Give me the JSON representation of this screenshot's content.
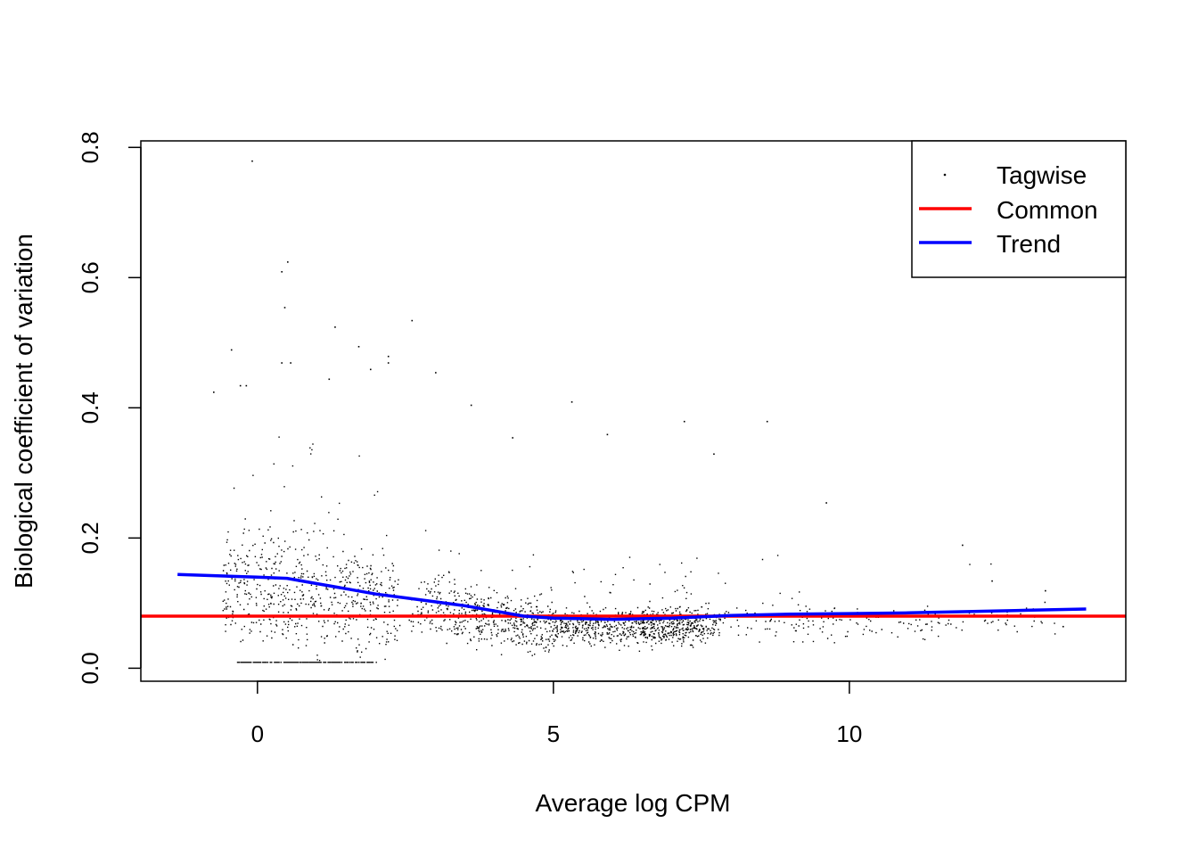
{
  "chart_data": {
    "type": "scatter",
    "title": "",
    "xlabel": "Average log CPM",
    "ylabel": "Biological coefficient of variation",
    "xlim": [
      -1.97,
      14.67
    ],
    "ylim": [
      -0.02,
      0.81
    ],
    "x_ticks": [
      0,
      5,
      10
    ],
    "x_tick_labels": [
      "0",
      "5",
      "10"
    ],
    "y_ticks": [
      0.0,
      0.2,
      0.4,
      0.6,
      0.8
    ],
    "y_tick_labels": [
      "0.0",
      "0.2",
      "0.4",
      "0.6",
      "0.8"
    ],
    "grid": false,
    "legend_position": "top-right",
    "legend": [
      {
        "label": "Tagwise",
        "kind": "point",
        "color": "#000000"
      },
      {
        "label": "Common",
        "kind": "line",
        "color": "#ff0000"
      },
      {
        "label": "Trend",
        "kind": "line",
        "color": "#0000ff"
      }
    ],
    "common": {
      "name": "Common",
      "color": "#ff0000",
      "value": 0.08
    },
    "trend": {
      "name": "Trend",
      "color": "#0000ff",
      "x": [
        -1.35,
        0.0,
        0.5,
        1.0,
        1.5,
        2.0,
        2.5,
        3.0,
        3.5,
        4.0,
        4.5,
        5.0,
        5.5,
        6.0,
        6.5,
        7.0,
        7.5,
        8.0,
        8.5,
        9.0,
        10.0,
        11.0,
        12.0,
        13.0,
        14.0
      ],
      "y": [
        0.144,
        0.14,
        0.138,
        0.13,
        0.122,
        0.114,
        0.108,
        0.102,
        0.096,
        0.088,
        0.08,
        0.077,
        0.076,
        0.075,
        0.076,
        0.077,
        0.079,
        0.081,
        0.082,
        0.083,
        0.084,
        0.085,
        0.087,
        0.089,
        0.091
      ]
    },
    "tagwise": {
      "name": "Tagwise",
      "color": "#000000",
      "outliers": [
        [
          -0.1,
          0.78
        ],
        [
          0.5,
          0.625
        ],
        [
          0.4,
          0.61
        ],
        [
          0.45,
          0.555
        ],
        [
          2.6,
          0.535
        ],
        [
          1.3,
          0.525
        ],
        [
          -0.45,
          0.49
        ],
        [
          1.7,
          0.495
        ],
        [
          2.2,
          0.48
        ],
        [
          2.2,
          0.47
        ],
        [
          0.55,
          0.47
        ],
        [
          0.4,
          0.47
        ],
        [
          1.2,
          0.445
        ],
        [
          1.9,
          0.46
        ],
        [
          3.0,
          0.455
        ],
        [
          -0.2,
          0.435
        ],
        [
          -0.3,
          0.435
        ],
        [
          -0.75,
          0.425
        ],
        [
          4.3,
          0.355
        ],
        [
          5.3,
          0.41
        ],
        [
          3.6,
          0.405
        ],
        [
          5.9,
          0.36
        ],
        [
          7.2,
          0.38
        ],
        [
          8.6,
          0.38
        ],
        [
          7.7,
          0.33
        ],
        [
          9.6,
          0.255
        ],
        [
          11.9,
          0.19
        ],
        [
          12.4,
          0.135
        ],
        [
          13.3,
          0.12
        ],
        [
          13.6,
          0.065
        ]
      ]
    }
  }
}
